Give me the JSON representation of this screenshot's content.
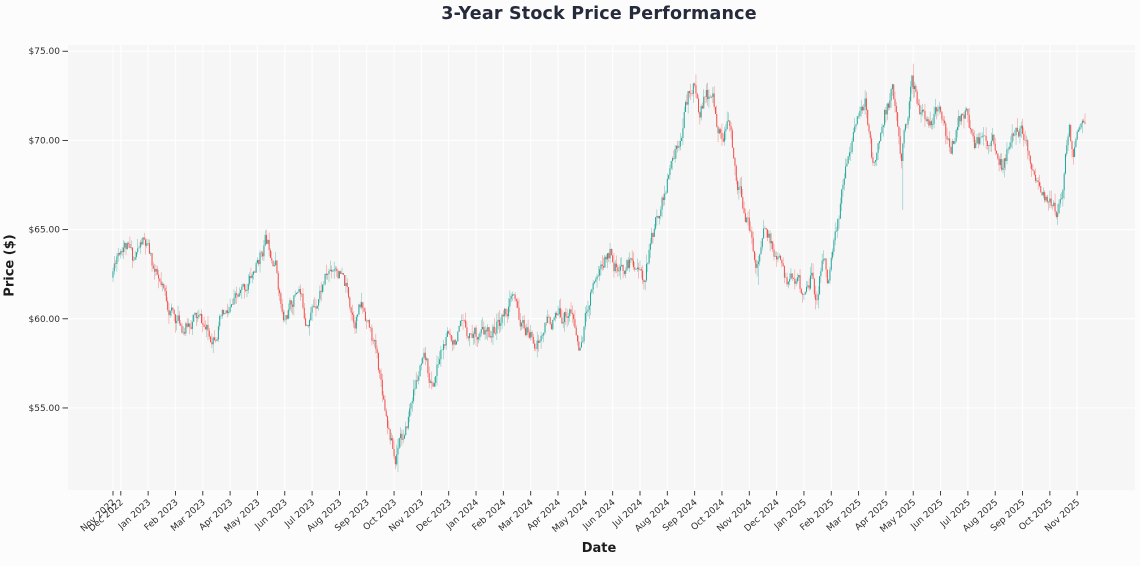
{
  "chart_data": {
    "type": "candlestick",
    "title": "3-Year Stock Price Performance",
    "xlabel": "Date",
    "ylabel": "Price ($)",
    "legend": "none",
    "grid": true,
    "ylim": [
      50.4,
      75.35
    ],
    "y_ticks": [
      {
        "price": 55,
        "label": "$55.00"
      },
      {
        "price": 60,
        "label": "$60.00"
      },
      {
        "price": 65,
        "label": "$65.00"
      },
      {
        "price": 70,
        "label": "$70.00"
      },
      {
        "price": 75,
        "label": "$75.00"
      }
    ],
    "x_ticks": [
      "Nov 2022",
      "Dec 2022",
      "Jan 2023",
      "Feb 2023",
      "Mar 2023",
      "Apr 2023",
      "May 2023",
      "Jun 2023",
      "Jul 2023",
      "Aug 2023",
      "Sep 2023",
      "Oct 2023",
      "Nov 2023",
      "Dec 2023",
      "Jan 2024",
      "Feb 2024",
      "Mar 2024",
      "Apr 2024",
      "May 2024",
      "Jun 2024",
      "Jul 2024",
      "Aug 2024",
      "Sep 2024",
      "Oct 2024",
      "Nov 2024",
      "Dec 2024",
      "Jan 2025",
      "Feb 2025",
      "Mar 2025",
      "Apr 2025",
      "May 2025",
      "Jun 2025",
      "Jul 2025",
      "Aug 2025",
      "Sep 2025",
      "Oct 2025",
      "Nov 2025"
    ],
    "colors": {
      "up": "#26a69a",
      "down": "#ef5350",
      "plot_bg": "#f7f6f6",
      "grid": "#ffffff",
      "tick_text": "#2f2f2f",
      "tick_mark": "#2b2b2b",
      "title": "#262b3b"
    },
    "trend_anchors": [
      [
        0,
        62.3
      ],
      [
        0.7,
        63.8
      ],
      [
        1.15,
        64.4
      ],
      [
        1.5,
        63.3
      ],
      [
        1.85,
        64.3
      ],
      [
        2,
        63.9
      ],
      [
        2.5,
        61.6
      ],
      [
        3,
        60.1
      ],
      [
        3.4,
        59.5
      ],
      [
        3.7,
        60.1
      ],
      [
        4,
        59.8
      ],
      [
        4.3,
        58.9
      ],
      [
        4.7,
        59.9
      ],
      [
        5,
        60.2
      ],
      [
        5.5,
        61.4
      ],
      [
        6,
        62.9
      ],
      [
        6.35,
        64.4
      ],
      [
        6.7,
        63.5
      ],
      [
        7,
        59.7
      ],
      [
        7.3,
        60.8
      ],
      [
        7.55,
        61.9
      ],
      [
        7.8,
        60.1
      ],
      [
        8,
        60.4
      ],
      [
        8.5,
        62.2
      ],
      [
        8.9,
        63.2
      ],
      [
        9.3,
        61.6
      ],
      [
        9.6,
        60.1
      ],
      [
        9.85,
        60.7
      ],
      [
        10,
        60.3
      ],
      [
        10.4,
        58.0
      ],
      [
        10.8,
        54.5
      ],
      [
        11.1,
        51.9
      ],
      [
        11.25,
        53.9
      ],
      [
        11.45,
        53.2
      ],
      [
        11.7,
        55.6
      ],
      [
        12,
        57.1
      ],
      [
        12.2,
        57.4
      ],
      [
        12.45,
        56.1
      ],
      [
        12.8,
        58.3
      ],
      [
        13,
        58.8
      ],
      [
        13.5,
        59.2
      ],
      [
        14,
        59.3
      ],
      [
        14.5,
        59.0
      ],
      [
        15,
        60.1
      ],
      [
        15.4,
        61.1
      ],
      [
        15.7,
        59.6
      ],
      [
        16,
        59.1
      ],
      [
        16.35,
        58.7
      ],
      [
        16.7,
        59.9
      ],
      [
        17,
        59.9
      ],
      [
        17.5,
        60.6
      ],
      [
        17.85,
        58.1
      ],
      [
        18.1,
        60.5
      ],
      [
        18.3,
        62.1
      ],
      [
        18.6,
        63.0
      ],
      [
        19,
        63.9
      ],
      [
        19.3,
        62.3
      ],
      [
        19.6,
        63.1
      ],
      [
        19.95,
        63.3
      ],
      [
        20.15,
        62.1
      ],
      [
        20.5,
        64.6
      ],
      [
        20.8,
        66.5
      ],
      [
        21,
        67.3
      ],
      [
        21.4,
        69.8
      ],
      [
        21.8,
        72.5
      ],
      [
        22,
        73.2
      ],
      [
        22.2,
        71.6
      ],
      [
        22.45,
        72.4
      ],
      [
        22.7,
        72.3
      ],
      [
        23,
        70.2
      ],
      [
        23.3,
        70.8
      ],
      [
        23.55,
        68.2
      ],
      [
        23.8,
        66.5
      ],
      [
        24,
        65.3
      ],
      [
        24.3,
        62.9
      ],
      [
        24.6,
        65.0
      ],
      [
        25,
        63.4
      ],
      [
        25.4,
        62.0
      ],
      [
        25.7,
        62.6
      ],
      [
        26,
        61.3
      ],
      [
        26.3,
        62.4
      ],
      [
        26.5,
        61.0
      ],
      [
        26.75,
        63.8
      ],
      [
        26.9,
        62.3
      ],
      [
        27.05,
        63.2
      ],
      [
        27.25,
        64.6
      ],
      [
        27.45,
        67.2
      ],
      [
        27.65,
        69.4
      ],
      [
        27.85,
        70.4
      ],
      [
        28.1,
        71.2
      ],
      [
        28.3,
        71.9
      ],
      [
        28.55,
        68.6
      ],
      [
        28.8,
        70.0
      ],
      [
        29,
        71.5
      ],
      [
        29.3,
        72.8
      ],
      [
        29.6,
        69.2
      ],
      [
        29.8,
        71.0
      ],
      [
        30,
        73.3
      ],
      [
        30.15,
        72.5
      ],
      [
        30.4,
        71.4
      ],
      [
        30.7,
        70.7
      ],
      [
        31,
        71.8
      ],
      [
        31.4,
        69.3
      ],
      [
        31.7,
        71.3
      ],
      [
        32,
        71.7
      ],
      [
        32.3,
        69.6
      ],
      [
        32.6,
        70.3
      ],
      [
        33,
        69.9
      ],
      [
        33.3,
        68.6
      ],
      [
        33.6,
        69.9
      ],
      [
        34,
        70.6
      ],
      [
        34.3,
        69.0
      ],
      [
        34.65,
        67.5
      ],
      [
        35,
        66.6
      ],
      [
        35.3,
        66.1
      ],
      [
        35.55,
        67.5
      ],
      [
        35.75,
        70.9
      ],
      [
        35.9,
        68.8
      ],
      [
        36.1,
        70.9
      ],
      [
        36.35,
        71.2
      ]
    ],
    "special_wicks": [
      {
        "t": 6.35,
        "high": 65.0
      },
      {
        "t": 11.12,
        "low": 51.4
      },
      {
        "t": 22.05,
        "high": 73.7
      },
      {
        "t": 24.32,
        "low": 61.9
      },
      {
        "t": 29.6,
        "low": 66.1
      },
      {
        "t": 30.0,
        "high": 74.3
      },
      {
        "t": 35.3,
        "low": 65.8
      }
    ],
    "render": {
      "days_total": 748,
      "days_before_first_tick": 6,
      "days_per_month": 21,
      "seed": 11,
      "noise_decay": 0.62,
      "noise_amp": 0.42,
      "wick_amp": 0.55
    }
  }
}
